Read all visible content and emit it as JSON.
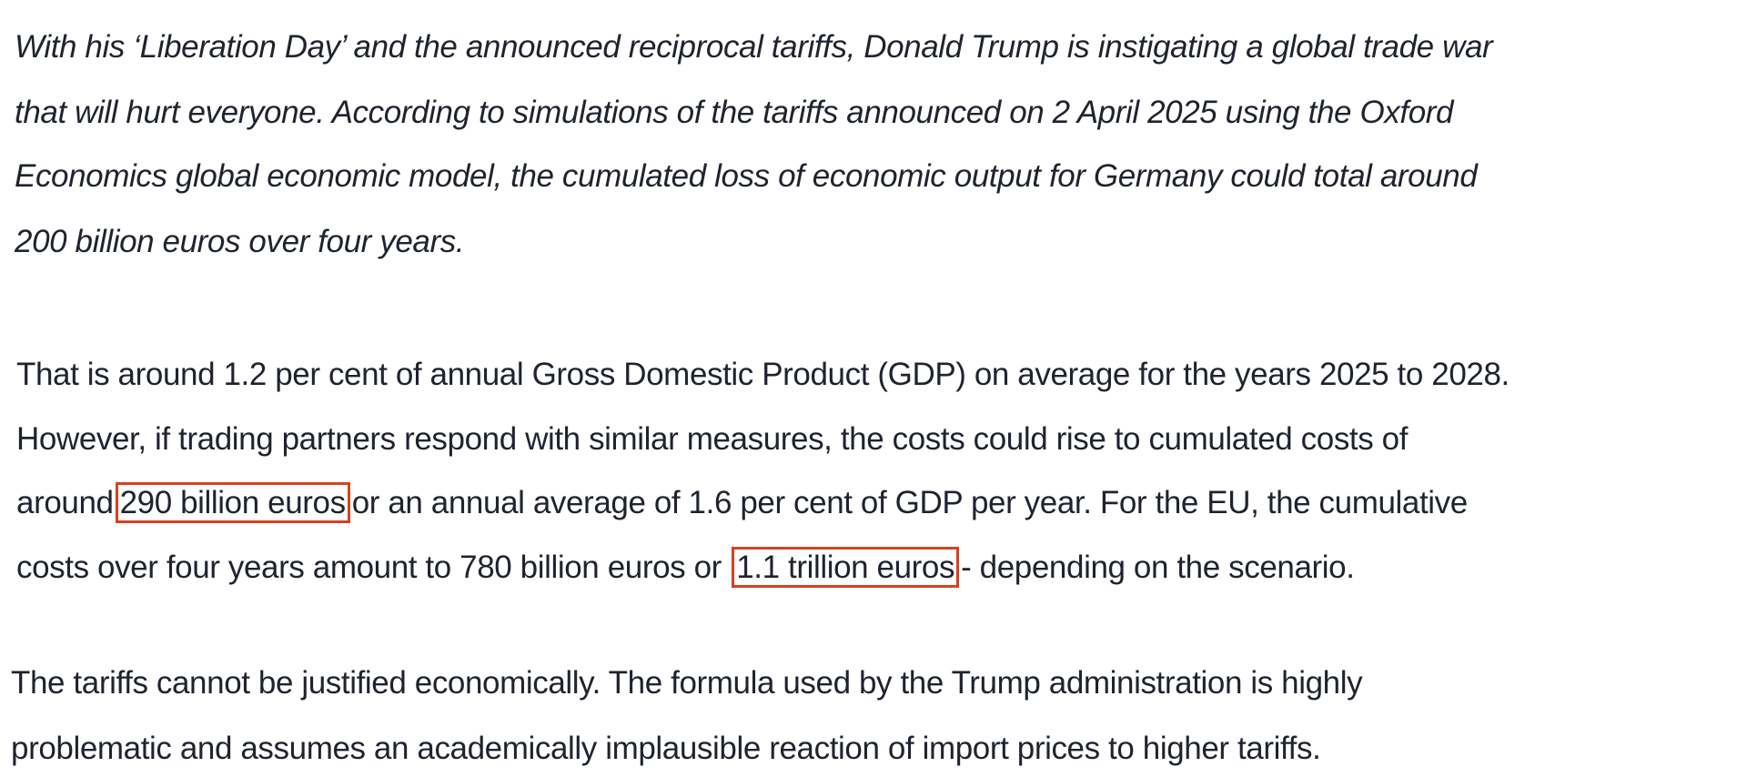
{
  "article": {
    "intro_lines": [
      "With his ‘Liberation Day’ and the announced reciprocal tariffs, Donald Trump is instigating a global trade war",
      "that will hurt everyone. According to simulations of the tariffs announced on 2 April 2025 using the Oxford",
      "Economics global economic model, the cumulated loss of economic output for Germany could total around",
      "200 billion euros over four years."
    ],
    "para2": {
      "line1": "That is around 1.2 per cent of annual Gross Domestic Product (GDP) on average for the years 2025 to 2028.",
      "line2": "However, if trading partners respond with similar measures, the costs could rise to cumulated costs of",
      "line3_before": "around",
      "highlight1": "290 billion euros",
      "line3_after": "or an annual average of 1.6 per cent of GDP per year. For the EU, the cumulative",
      "line4_before": "costs over four years amount to 780 billion euros or",
      "highlight2": "1.1 trillion euros",
      "line4_after": "- depending on the scenario."
    },
    "para3_lines": [
      "The tariffs cannot be justified economically. The formula used by the Trump administration is highly",
      "problematic and assumes an academically implausible reaction of import prices to higher tariffs."
    ]
  },
  "colors": {
    "text": "#1f2330",
    "highlight_box": "#d8401f"
  }
}
